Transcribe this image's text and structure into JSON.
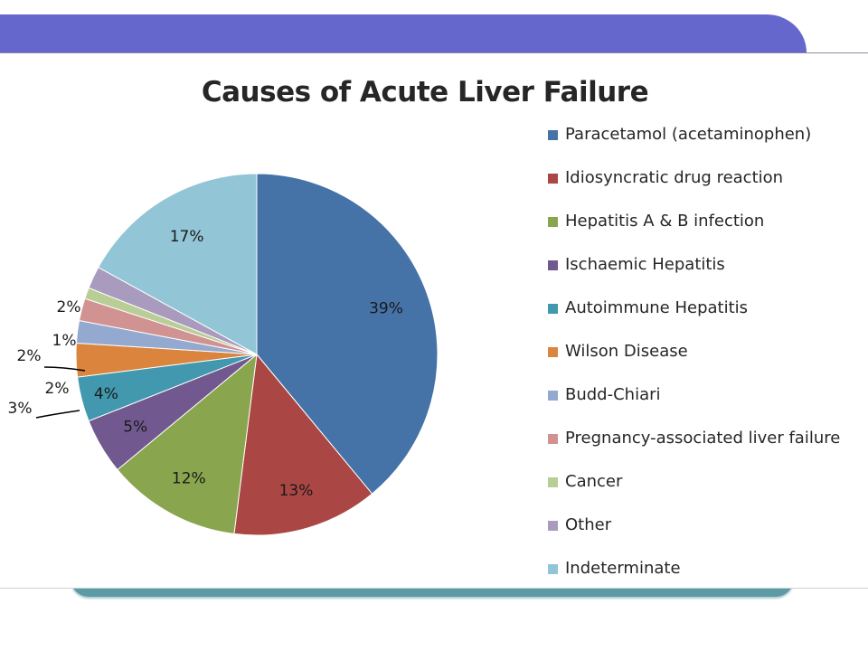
{
  "slide": {
    "accent_band_color": "#6667cc"
  },
  "chart_data": {
    "type": "pie",
    "title": "Causes of Acute Liver Failure",
    "legend_position": "right",
    "categories": [
      "Paracetamol (acetaminophen)",
      "Idiosyncratic drug reaction",
      "Hepatitis A & B infection",
      "Ischaemic Hepatitis",
      "Autoimmune Hepatitis",
      "Wilson Disease",
      "Budd-Chiari",
      "Pregnancy-associated liver failure",
      "Cancer",
      "Other",
      "Indeterminate"
    ],
    "values": [
      39,
      13,
      12,
      5,
      4,
      3,
      2,
      2,
      1,
      2,
      17
    ],
    "labels": [
      "39%",
      "13%",
      "12%",
      "5%",
      "4%",
      "3%",
      "2%",
      "2%",
      "1%",
      "2%",
      "17%"
    ],
    "colors": [
      "#4572a7",
      "#aa4643",
      "#89a54e",
      "#71588f",
      "#4198af",
      "#db843d",
      "#93a9cf",
      "#d19392",
      "#b9cd96",
      "#a99bbd",
      "#92c5d6"
    ]
  }
}
